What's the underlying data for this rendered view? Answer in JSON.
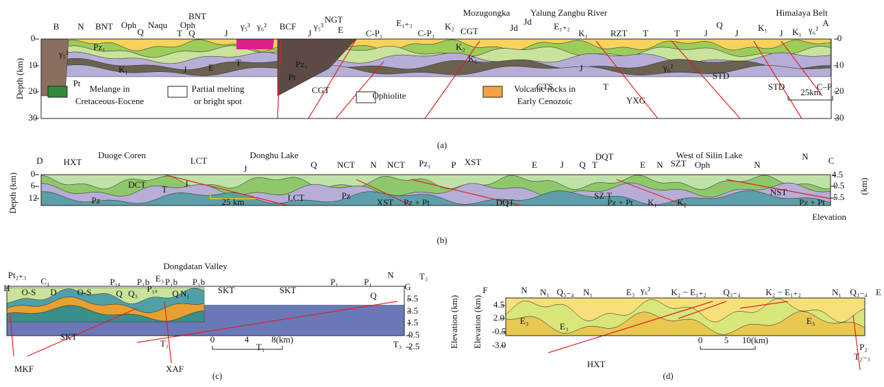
{
  "panel_a": {
    "top_labels": [
      "B",
      "N",
      "BNT",
      "Oph",
      "Q",
      "Naqu",
      "T",
      "Oph",
      "Q",
      "BNT",
      "J",
      "γ₅³",
      "γ₆²",
      "BCF",
      "J",
      "γ₅³",
      "NGT",
      "E",
      "C-P₁",
      "E₁₊₂",
      "C-P₁",
      "Mozugongka",
      "K₂",
      "CGT",
      "Jd",
      "Jd",
      "Yalung Zangbu River",
      "E₁₊₂",
      "K₁",
      "RZT",
      "T",
      "T",
      "J",
      "Q",
      "J",
      "K₁",
      "J",
      "Himalaya Belt",
      "K₁",
      "γ₆²",
      "A"
    ],
    "inner_labels": [
      "Pz₁",
      "γ₅²",
      "Pt",
      "K₁",
      "J",
      "E",
      "T",
      "Pz₁",
      "Pt",
      "CGT",
      "K₂",
      "K₁",
      "GTS",
      "J",
      "T",
      "γ₆²",
      "YXG",
      "STD",
      "STD",
      "C–P"
    ],
    "legend": [
      "Melange in",
      "Cretaceous-Eocene",
      "Partial melting",
      "or bright spot",
      "Ophiolite",
      "Volcanic rocks in",
      "Early Cenozoic"
    ],
    "scale": "25km",
    "axis_label": "Depth (km)",
    "left_ticks": [
      "0",
      "10",
      "20",
      "30"
    ],
    "right_ticks": [
      "0",
      "10",
      "20",
      "30"
    ],
    "caption": "(a)"
  },
  "panel_b": {
    "top_labels": [
      "D",
      "HXT",
      "Duoge Coren",
      "LCT",
      "Donghu Lake",
      "J",
      "Q",
      "NCT",
      "N",
      "NCT",
      "Pz₁",
      "P",
      "XST",
      "E",
      "J",
      "Q",
      "DQT",
      "T",
      "E",
      "N",
      "SZT",
      "West of Silin Lake",
      "Oph",
      "N",
      "N",
      "C"
    ],
    "inner_labels": [
      "DCT",
      "T",
      "J",
      "Pz",
      "25 km",
      "LCT",
      "Pz",
      "XST",
      "Pz + Pt",
      "DQT",
      "SZ T",
      "Pz + Pt",
      "K₁",
      "K₂",
      "NST",
      "Pz + Pt"
    ],
    "axis_label": "Depth (km)",
    "left_ticks": [
      "0",
      "6",
      "12"
    ],
    "right_ticks": [
      "4.5",
      "-0.5",
      "-5.5"
    ],
    "right_unit": "(km)",
    "right_axis_label": "Elevation",
    "caption": "(b)"
  },
  "panel_c": {
    "top_labels": [
      "Pt₂₊₃",
      "H",
      "O-S",
      "C₁",
      "D",
      "O-S",
      "P₁ₐ",
      "Q",
      "Q₃",
      "P₁b",
      "P₁ₐ",
      "E₃",
      "P₁b",
      "Q",
      "N₁",
      "P₁b",
      "Dongdatan Valley",
      "SKT",
      "SKT",
      "P₁",
      "P₁",
      "Q",
      "N",
      "G",
      "T₃"
    ],
    "inner_labels": [
      "SKT",
      "T₁",
      "XAF",
      "MKF",
      "T₁",
      "T₃",
      "0",
      "4",
      "8(km)"
    ],
    "right_ticks": [
      "5.5",
      "3.5",
      "1.5",
      "-0.5",
      "-2.5"
    ],
    "axis_label": "Elevation (km)",
    "caption": "(c)"
  },
  "panel_d": {
    "top_labels": [
      "F",
      "N",
      "N₁",
      "Q₃₋₄",
      "N₁",
      "E₃",
      "γ₆²",
      "K₂ − E₁₊₂",
      "Q₃₋₄",
      "K₂ − E₁₊₂",
      "N₁",
      "Q₃₋₄",
      "E"
    ],
    "inner_labels": [
      "E₃",
      "E₃",
      "HXT",
      "0",
      "5",
      "10(km)",
      "E₃",
      "P₂",
      "T₂₋₃"
    ],
    "left_ticks": [
      "4.5",
      "2.0",
      "-0.5",
      "-3.0"
    ],
    "axis_label": "Elevation (km)",
    "caption": "(d)"
  }
}
